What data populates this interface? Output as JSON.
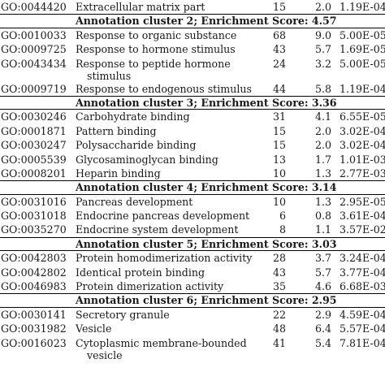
{
  "rows": [
    {
      "kind": "term",
      "go": "GO:0044420",
      "term": "Extracellular matrix part",
      "count": "15",
      "fold": "2.0",
      "pvalue": "1.19E-04"
    },
    {
      "kind": "cluster",
      "label": "Annotation cluster 2; Enrichment Score: 4.57"
    },
    {
      "kind": "term",
      "go": "GO:0010033",
      "term": "Response to organic substance",
      "count": "68",
      "fold": "9.0",
      "pvalue": "5.00E-05"
    },
    {
      "kind": "term",
      "go": "GO:0009725",
      "term": "Response to hormone stimulus",
      "count": "43",
      "fold": "5.7",
      "pvalue": "1.69E-05"
    },
    {
      "kind": "term",
      "go": "GO:0043434",
      "term": "Response to peptide hormone",
      "term2": "stimulus",
      "count": "24",
      "fold": "3.2",
      "pvalue": "5.00E-05"
    },
    {
      "kind": "term",
      "go": "GO:0009719",
      "term": "Response to endogenous stimulus",
      "count": "44",
      "fold": "5.8",
      "pvalue": "1.19E-04"
    },
    {
      "kind": "cluster",
      "label": "Annotation cluster 3; Enrichment Score: 3.36"
    },
    {
      "kind": "term",
      "go": "GO:0030246",
      "term": "Carbohydrate binding",
      "count": "31",
      "fold": "4.1",
      "pvalue": "6.55E-05"
    },
    {
      "kind": "term",
      "go": "GO:0001871",
      "term": "Pattern binding",
      "count": "15",
      "fold": "2.0",
      "pvalue": "3.02E-04"
    },
    {
      "kind": "term",
      "go": "GO:0030247",
      "term": "Polysaccharide binding",
      "count": "15",
      "fold": "2.0",
      "pvalue": "3.02E-04"
    },
    {
      "kind": "term",
      "go": "GO:0005539",
      "term": "Glycosaminoglycan binding",
      "count": "13",
      "fold": "1.7",
      "pvalue": "1.01E-03"
    },
    {
      "kind": "term",
      "go": "GO:0008201",
      "term": "Heparin binding",
      "count": "10",
      "fold": "1.3",
      "pvalue": "2.77E-03"
    },
    {
      "kind": "cluster",
      "label": "Annotation cluster 4; Enrichment Score: 3.14"
    },
    {
      "kind": "term",
      "go": "GO:0031016",
      "term": "Pancreas development",
      "count": "10",
      "fold": "1.3",
      "pvalue": "2.95E-05"
    },
    {
      "kind": "term",
      "go": "GO:0031018",
      "term": "Endocrine pancreas development",
      "count": "6",
      "fold": "0.8",
      "pvalue": "3.61E-04"
    },
    {
      "kind": "term",
      "go": "GO:0035270",
      "term": "Endocrine system development",
      "count": "8",
      "fold": "1.1",
      "pvalue": "3.57E-02"
    },
    {
      "kind": "cluster",
      "label": "Annotation cluster 5; Enrichment Score: 3.03"
    },
    {
      "kind": "term",
      "go": "GO:0042803",
      "term": "Protein homodimerization activity",
      "count": "28",
      "fold": "3.7",
      "pvalue": "3.24E-04"
    },
    {
      "kind": "term",
      "go": "GO:0042802",
      "term": "Identical protein binding",
      "count": "43",
      "fold": "5.7",
      "pvalue": "3.77E-04"
    },
    {
      "kind": "term",
      "go": "GO:0046983",
      "term": "Protein dimerization activity",
      "count": "35",
      "fold": "4.6",
      "pvalue": "6.68E-03"
    },
    {
      "kind": "cluster",
      "label": "Annotation cluster 6; Enrichment Score: 2.95"
    },
    {
      "kind": "term",
      "go": "GO:0030141",
      "term": "Secretory granule",
      "count": "22",
      "fold": "2.9",
      "pvalue": "4.59E-04"
    },
    {
      "kind": "term",
      "go": "GO:0031982",
      "term": "Vesicle",
      "count": "48",
      "fold": "6.4",
      "pvalue": "5.57E-04"
    },
    {
      "kind": "term",
      "go": "GO:0016023",
      "term": "Cytoplasmic membrane-bounded",
      "term2": "vesicle",
      "count": "41",
      "fold": "5.4",
      "pvalue": "7.81E-04"
    }
  ]
}
